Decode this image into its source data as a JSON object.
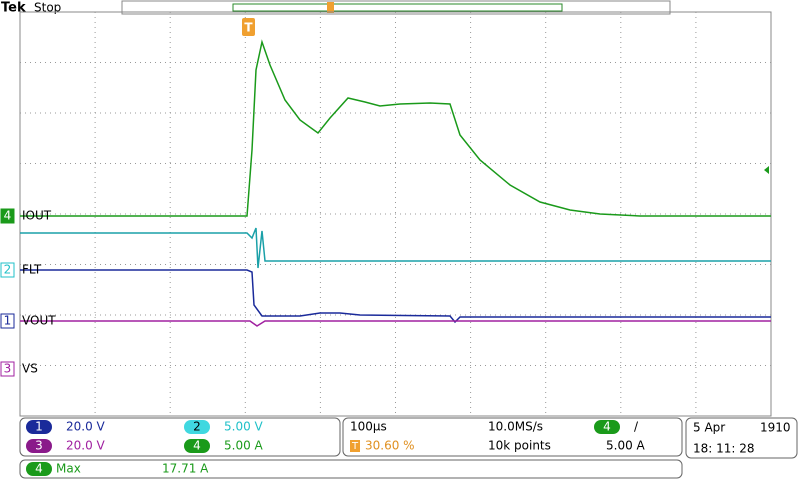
{
  "header": {
    "brand": "Tek",
    "status": "Stop"
  },
  "trigger_marker": "T",
  "channels": [
    {
      "number": "4",
      "label": "IOUT"
    },
    {
      "number": "2",
      "label": "FLT"
    },
    {
      "number": "1",
      "label": "VOUT"
    },
    {
      "number": "3",
      "label": "VS"
    }
  ],
  "scales": [
    {
      "channel": "1",
      "value": "20.0 V"
    },
    {
      "channel": "3",
      "value": "20.0 V"
    },
    {
      "channel": "2",
      "value": "5.00 V"
    },
    {
      "channel": "4",
      "value": "5.00 A"
    }
  ],
  "timebase": {
    "scale": "100µs",
    "trigger_position": "30.60 %",
    "sample_rate": "10.0MS/s",
    "record_length": "10k points"
  },
  "trigger": {
    "channel": "4",
    "slope": "/",
    "level": "5.00 A"
  },
  "datetime": {
    "date": "5 Apr",
    "year": "1910",
    "time": "18: 11: 28"
  },
  "measurement": {
    "channel": "4",
    "name": "Max",
    "value": "17.71 A"
  }
}
